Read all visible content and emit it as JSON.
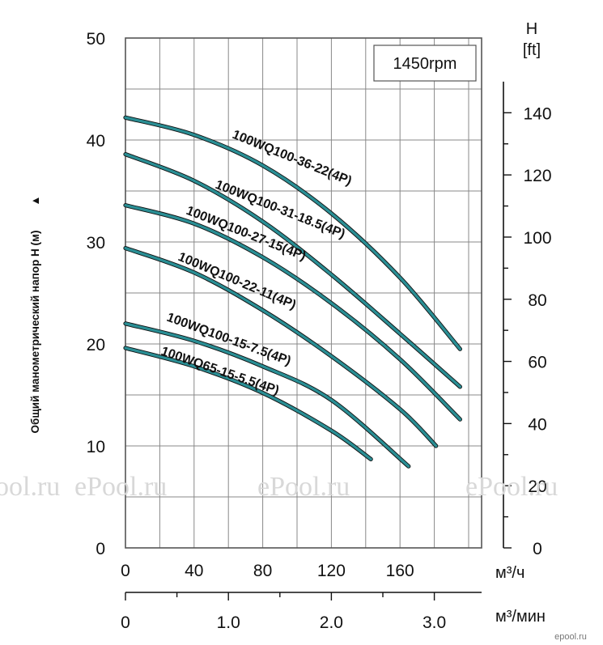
{
  "chart_data": {
    "type": "line",
    "speed_box": "1450rpm",
    "ylabel": "Общий манометрический напор H (м)",
    "ylabel_arrow": "▲",
    "y_right_title": "H",
    "y_right_unit": "[ft]",
    "x_unit_top": "м³/ч",
    "x_unit_bottom": "м³/мин",
    "x_ticks_top": [
      "0",
      "40",
      "80",
      "120",
      "160"
    ],
    "x_tick_values_top": [
      0,
      40,
      80,
      120,
      160
    ],
    "x_ticks_bottom": [
      "0",
      "1.0",
      "2.0",
      "3.0"
    ],
    "x_tick_values_bottom": [
      0,
      1.0,
      2.0,
      3.0
    ],
    "y_ticks_left": [
      "0",
      "10",
      "20",
      "30",
      "40",
      "50"
    ],
    "y_tick_values_left": [
      0,
      10,
      20,
      30,
      40,
      50
    ],
    "y_ticks_right": [
      "0",
      "20",
      "40",
      "60",
      "80",
      "100",
      "120",
      "140"
    ],
    "y_tick_values_right": [
      0,
      20,
      40,
      60,
      80,
      100,
      120,
      140
    ],
    "xlim": [
      0,
      200
    ],
    "ylim": [
      0,
      50
    ],
    "grid": true,
    "series": [
      {
        "name": "100WQ100-36-22(4P)",
        "x": [
          0,
          40,
          80,
          120,
          160,
          195
        ],
        "y": [
          42.2,
          40.5,
          37.5,
          32.8,
          26.5,
          19.5
        ]
      },
      {
        "name": "100WQ100-31-18.5(4P)",
        "x": [
          0,
          40,
          80,
          120,
          160,
          195
        ],
        "y": [
          38.6,
          36.0,
          32.0,
          26.8,
          21.0,
          15.8
        ]
      },
      {
        "name": "100WQ100-27-15(4P)",
        "x": [
          0,
          40,
          80,
          120,
          160,
          195
        ],
        "y": [
          33.6,
          31.8,
          28.5,
          24.0,
          18.5,
          12.6
        ]
      },
      {
        "name": "100WQ100-22-11(4P)",
        "x": [
          0,
          40,
          80,
          120,
          160,
          181
        ],
        "y": [
          29.4,
          27.0,
          23.3,
          18.8,
          13.6,
          10.0
        ]
      },
      {
        "name": "100WQ100-15-7.5(4P)",
        "x": [
          0,
          40,
          80,
          120,
          165
        ],
        "y": [
          22.0,
          20.3,
          17.8,
          14.5,
          8.0
        ]
      },
      {
        "name": "100WQ65-15-5.5(4P)",
        "x": [
          0,
          40,
          80,
          120,
          143
        ],
        "y": [
          19.6,
          17.8,
          15.2,
          11.5,
          8.7
        ]
      }
    ]
  },
  "watermarks": [
    "ePool.ru",
    "ePool.ru",
    "ePool.ru",
    "ePool.ru"
  ],
  "logo_small": "epool.ru"
}
